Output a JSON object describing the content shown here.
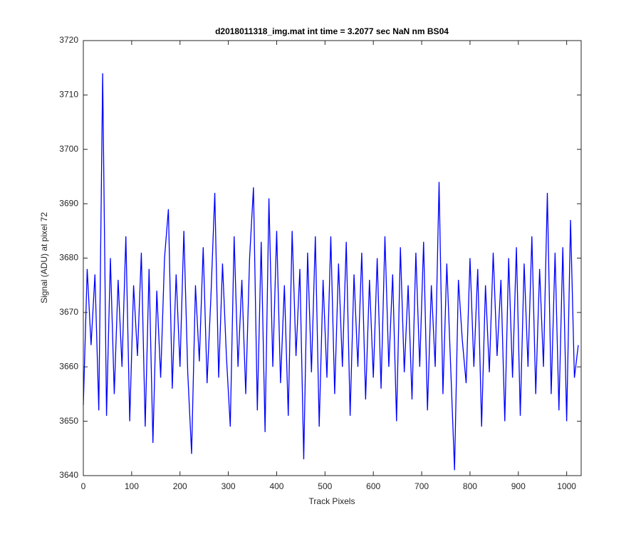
{
  "chart_data": {
    "type": "line",
    "title": "d2018011318_img.mat int time = 3.2077 sec  NaN nm BS04",
    "xlabel": "Track Pixels",
    "ylabel": "Signal (ADU) at pixel 72",
    "x": [
      0,
      8,
      16,
      24,
      32,
      40,
      48,
      56,
      64,
      72,
      80,
      88,
      96,
      104,
      112,
      120,
      128,
      136,
      144,
      152,
      160,
      168,
      176,
      184,
      192,
      200,
      208,
      216,
      224,
      232,
      240,
      248,
      256,
      264,
      272,
      280,
      288,
      296,
      304,
      312,
      320,
      328,
      336,
      344,
      352,
      360,
      368,
      376,
      384,
      392,
      400,
      408,
      416,
      424,
      432,
      440,
      448,
      456,
      464,
      472,
      480,
      488,
      496,
      504,
      512,
      520,
      528,
      536,
      544,
      552,
      560,
      568,
      576,
      584,
      592,
      600,
      608,
      616,
      624,
      632,
      640,
      648,
      656,
      664,
      672,
      680,
      688,
      696,
      704,
      712,
      720,
      728,
      736,
      744,
      752,
      760,
      768,
      776,
      784,
      792,
      800,
      808,
      816,
      824,
      832,
      840,
      848,
      856,
      864,
      872,
      880,
      888,
      896,
      904,
      912,
      920,
      928,
      936,
      944,
      952,
      960,
      968,
      976,
      984,
      992,
      1000,
      1008,
      1016,
      1024
    ],
    "series": [
      {
        "name": "signal",
        "color": "#0000ff",
        "values": [
          3653,
          3678,
          3664,
          3677,
          3652,
          3714,
          3651,
          3680,
          3655,
          3676,
          3660,
          3684,
          3650,
          3675,
          3662,
          3681,
          3649,
          3678,
          3646,
          3674,
          3658,
          3680,
          3689,
          3656,
          3677,
          3660,
          3685,
          3659,
          3644,
          3675,
          3661,
          3682,
          3657,
          3673,
          3692,
          3658,
          3679,
          3662,
          3649,
          3684,
          3660,
          3676,
          3655,
          3680,
          3693,
          3652,
          3683,
          3648,
          3691,
          3660,
          3685,
          3657,
          3675,
          3651,
          3685,
          3662,
          3678,
          3643,
          3681,
          3659,
          3684,
          3649,
          3676,
          3658,
          3684,
          3655,
          3679,
          3660,
          3683,
          3651,
          3677,
          3660,
          3681,
          3654,
          3676,
          3658,
          3680,
          3656,
          3684,
          3660,
          3677,
          3650,
          3682,
          3659,
          3675,
          3654,
          3681,
          3660,
          3683,
          3652,
          3675,
          3660,
          3694,
          3655,
          3679,
          3660,
          3641,
          3676,
          3665,
          3657,
          3680,
          3660,
          3678,
          3649,
          3675,
          3659,
          3681,
          3662,
          3676,
          3650,
          3680,
          3658,
          3682,
          3651,
          3679,
          3660,
          3684,
          3655,
          3678,
          3660,
          3692,
          3655,
          3681,
          3652,
          3682,
          3650,
          3687,
          3658,
          3664
        ]
      }
    ],
    "xlim": [
      0,
      1030
    ],
    "ylim": [
      3640,
      3720
    ],
    "xticks": [
      0,
      100,
      200,
      300,
      400,
      500,
      600,
      700,
      800,
      900,
      1000
    ],
    "yticks": [
      3640,
      3650,
      3660,
      3670,
      3680,
      3690,
      3700,
      3710,
      3720
    ]
  }
}
